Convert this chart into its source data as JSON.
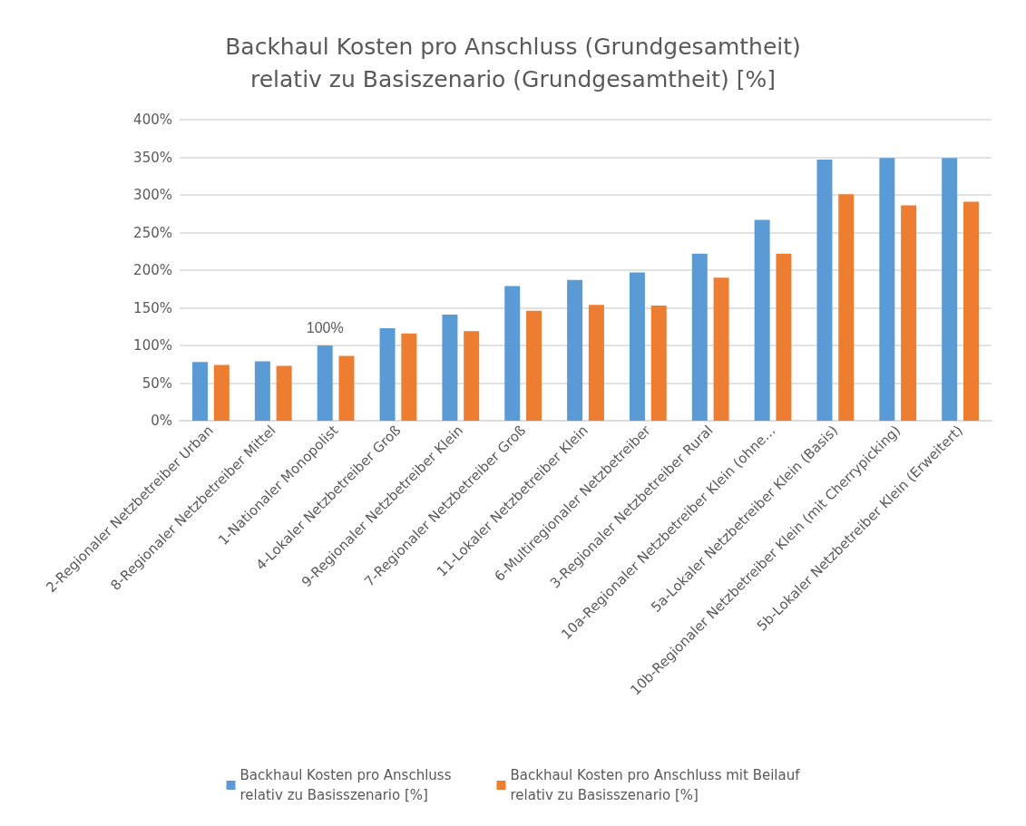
{
  "chart_data": {
    "type": "bar",
    "title": "Backhaul Kosten pro Anschluss (Grundgesamtheit)\nrelativ zu Basiszenario (Grundgesamtheit) [%]",
    "categories": [
      "2-Regionaler Netzbetreiber Urban",
      "8-Regionaler Netzbetreiber Mittel",
      "1-Nationaler Monopolist",
      "4-Lokaler Netzbetreiber Groß",
      "9-Regionaler Netzbetreiber Klein",
      "7-Regionaler Netzbetreiber Groß",
      "11-Lokaler Netzbetreiber Klein",
      "6-Multiregionaler Netzbetreiber",
      "3-Regionaler Netzbetreiber Rural",
      "10a-Regionaler Netzbetreiber Klein (ohne…",
      "5a-Lokaler Netzbetreiber Klein (Basis)",
      "10b-Regionaler Netzbetreiber Klein (mit Cherrypicking)",
      "5b-Lokaler Netzbetreiber Klein (Erweitert)"
    ],
    "series": [
      {
        "name": "Backhaul Kosten pro Anschluss\nrelativ zu Basisszenario [%]",
        "color": "#5b9bd5",
        "values": [
          78,
          79,
          100,
          123,
          141,
          179,
          187,
          197,
          222,
          267,
          347,
          349,
          349
        ]
      },
      {
        "name": "Backhaul Kosten pro Anschluss mit Beilauf\nrelativ zu Basisszenario [%]",
        "color": "#ed7d31",
        "values": [
          74,
          73,
          86,
          116,
          119,
          146,
          154,
          153,
          190,
          222,
          301,
          286,
          291
        ]
      }
    ],
    "annotations": [
      {
        "text": "100%",
        "x": "1-Nationaler Monopolist",
        "y": 100
      }
    ],
    "ylim": [
      0,
      400
    ],
    "yticks": [
      {
        "value": 0,
        "label": "0%"
      },
      {
        "value": 50,
        "label": "50%"
      },
      {
        "value": 100,
        "label": "100%"
      },
      {
        "value": 150,
        "label": "150%"
      },
      {
        "value": 200,
        "label": "200%"
      },
      {
        "value": 250,
        "label": "250%"
      },
      {
        "value": 300,
        "label": "300%"
      },
      {
        "value": 350,
        "label": "350%"
      },
      {
        "value": 400,
        "label": "400%"
      }
    ],
    "grid": true,
    "legend": "bottom"
  }
}
